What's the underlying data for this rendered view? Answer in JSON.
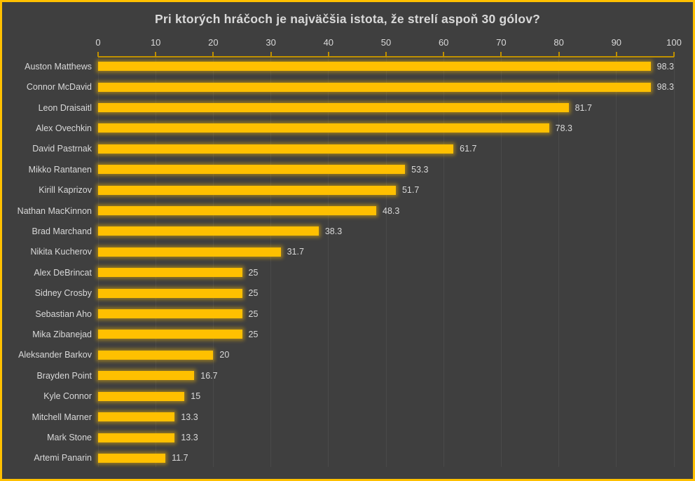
{
  "frame": {
    "background_color": "#3F3F3F",
    "border_color": "#FFC000"
  },
  "chart_data": {
    "type": "bar",
    "orientation": "horizontal",
    "title": "Pri ktorých hráčoch je najväčšia istota, že strelí aspoň 30 gólov?",
    "categories": [
      "Auston Matthews",
      "Connor McDavid",
      "Leon Draisaitl",
      "Alex Ovechkin",
      "David Pastrnak",
      "Mikko Rantanen",
      "Kirill Kaprizov",
      "Nathan MacKinnon",
      "Brad Marchand",
      "Nikita Kucherov",
      "Alex DeBrincat",
      "Sidney Crosby",
      "Sebastian Aho",
      "Mika Zibanejad",
      "Aleksander Barkov",
      "Brayden Point",
      "Kyle Connor",
      "Mitchell Marner",
      "Mark Stone",
      "Artemi Panarin"
    ],
    "values": [
      98.3,
      98.3,
      81.7,
      78.3,
      61.7,
      53.3,
      51.7,
      48.3,
      38.3,
      31.7,
      25,
      25,
      25,
      25,
      20,
      16.7,
      15,
      13.3,
      13.3,
      11.7
    ],
    "value_labels": [
      "98.3",
      "98.3",
      "81.7",
      "78.3",
      "61.7",
      "53.3",
      "51.7",
      "48.3",
      "38.3",
      "31.7",
      "25",
      "25",
      "25",
      "25",
      "20",
      "16.7",
      "15",
      "13.3",
      "13.3",
      "11.7"
    ],
    "xlabel": "",
    "ylabel": "",
    "xlim": [
      0,
      100
    ],
    "x_ticks": [
      0,
      10,
      20,
      30,
      40,
      50,
      60,
      70,
      80,
      90,
      100
    ],
    "axis_position": "top",
    "grid": true,
    "legend": false,
    "bar_color": "#FFC000",
    "axis_color": "#BF9000",
    "gridline_color": "#4A4A4A",
    "text_color": "#D9D9D9"
  }
}
